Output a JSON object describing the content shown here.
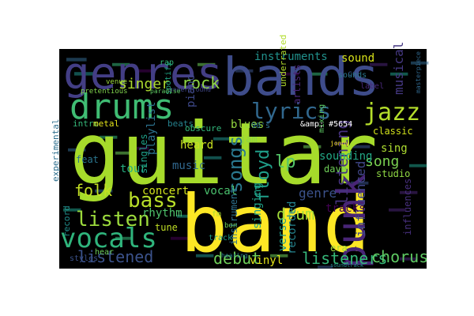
{
  "cloud": {
    "background": "#000000",
    "figure_background": "#ffffff",
    "colormap": "viridis",
    "words": [
      {
        "text": "guitar",
        "color": "#a6db2b"
      },
      {
        "text": "band",
        "color": "#fde725"
      },
      {
        "text": "bands",
        "color": "#3e4c8a"
      },
      {
        "text": "genres",
        "color": "#433e85"
      },
      {
        "text": "drums",
        "color": "#3fbc73"
      },
      {
        "text": "vocals",
        "color": "#2fb47c"
      },
      {
        "text": "punk",
        "color": "#482576"
      },
      {
        "text": "lyrics",
        "color": "#31688e"
      },
      {
        "text": "jazz",
        "color": "#b5de2b"
      },
      {
        "text": "listened",
        "color": "#3b528b"
      },
      {
        "text": "listeners",
        "color": "#35b779"
      },
      {
        "text": "bass",
        "color": "#b8de29"
      },
      {
        "text": "songs",
        "color": "#2a788e"
      },
      {
        "text": "listen",
        "color": "#9bd93c"
      },
      {
        "text": "floyd",
        "color": "#1f9e89"
      },
      {
        "text": "rock",
        "color": "#8fd744"
      },
      {
        "text": "singer",
        "color": "#addc30"
      },
      {
        "text": "instruments",
        "color": "#21918c"
      },
      {
        "text": "debut",
        "color": "#6ece58"
      },
      {
        "text": "chorus",
        "color": "#5ec962"
      },
      {
        "text": "drum",
        "color": "#a0da39"
      },
      {
        "text": "folk",
        "color": "#c2df23"
      },
      {
        "text": "song",
        "color": "#7ad151"
      },
      {
        "text": "lp",
        "color": "#54c568"
      },
      {
        "text": "listening",
        "color": "#46327e"
      },
      {
        "text": "genre",
        "color": "#3b528b"
      },
      {
        "text": "influenced",
        "color": "#404688"
      },
      {
        "text": "concert",
        "color": "#d0e11c"
      },
      {
        "text": "vinyl",
        "color": "#e4e419"
      },
      {
        "text": "playlist",
        "color": "#2c728e"
      },
      {
        "text": "music",
        "color": "#31688e"
      },
      {
        "text": "sound",
        "color": "#d8e219"
      },
      {
        "text": "musical",
        "color": "#453882"
      },
      {
        "text": "heard",
        "color": "#c8e020"
      },
      {
        "text": "tracks",
        "color": "#440154"
      },
      {
        "text": "singing",
        "color": "#1fa287"
      },
      {
        "text": "recorded",
        "color": "#25848e"
      },
      {
        "text": "sounding",
        "color": "#22a785"
      },
      {
        "text": "verse",
        "color": "#1e9b8a"
      },
      {
        "text": "tour",
        "color": "#26ad81"
      },
      {
        "text": "vocal",
        "color": "#4ac16d"
      },
      {
        "text": "blues",
        "color": "#95d840"
      },
      {
        "text": "jam",
        "color": "#8bd646"
      },
      {
        "text": "sing",
        "color": "#addc30"
      },
      {
        "text": "dave",
        "color": "#6ece58"
      },
      {
        "text": "studio",
        "color": "#8fd744"
      },
      {
        "text": "piano",
        "color": "#3e4989"
      },
      {
        "text": "instrument",
        "color": "#2d708e"
      },
      {
        "text": "artists",
        "color": "#482475"
      },
      {
        "text": "underrated",
        "color": "#b2dd2d"
      },
      {
        "text": "classic",
        "color": "#d2e21b"
      },
      {
        "text": "era",
        "color": "#9fda3a"
      },
      {
        "text": "record",
        "color": "#218f8d"
      },
      {
        "text": "experimental",
        "color": "#2e6f8e"
      },
      {
        "text": "rhythm",
        "color": "#4ec36b"
      },
      {
        "text": "tune",
        "color": "#c0df25"
      },
      {
        "text": "singles",
        "color": "#1fa188"
      },
      {
        "text": "beats",
        "color": "#26828e"
      },
      {
        "text": "intro",
        "color": "#35b779"
      },
      {
        "text": "metal",
        "color": "#e5e419"
      },
      {
        "text": "obscure",
        "color": "#32b67a"
      },
      {
        "text": "influences",
        "color": "#472f7d"
      },
      {
        "text": "feat",
        "color": "#2b758e"
      },
      {
        "text": "styles",
        "color": "#3b528b"
      },
      {
        "text": "hear",
        "color": "#6ccd5a"
      },
      {
        "text": "track",
        "color": "#1f9e89"
      },
      {
        "text": "label",
        "color": "#482878"
      },
      {
        "text": "cd",
        "color": "#3b528b"
      },
      {
        "text": "sounds",
        "color": "#2a788e"
      },
      {
        "text": "mixing",
        "color": "#5cc863"
      },
      {
        "text": "rap",
        "color": "#35b779"
      },
      {
        "text": "venue",
        "color": "#9dd93b"
      },
      {
        "text": "pretentious",
        "color": "#81d34d"
      },
      {
        "text": "spotify",
        "color": "#21a685"
      },
      {
        "text": "90's",
        "color": "#2c728e"
      },
      {
        "text": "&amp; #5654",
        "color": "#ffffff"
      },
      {
        "text": "fm",
        "color": "#aadc32"
      },
      {
        "text": "bon",
        "color": "#6ece58"
      },
      {
        "text": "underground",
        "color": "#404688"
      },
      {
        "text": "jonny",
        "color": "#fde725"
      },
      {
        "text": "masterpiece",
        "color": "#31688e"
      },
      {
        "text": "hearing",
        "color": "#287d8e"
      },
      {
        "text": "soundtrack",
        "color": "#238a8d"
      },
      {
        "text": "paradise",
        "color": "#5ec962"
      }
    ]
  }
}
